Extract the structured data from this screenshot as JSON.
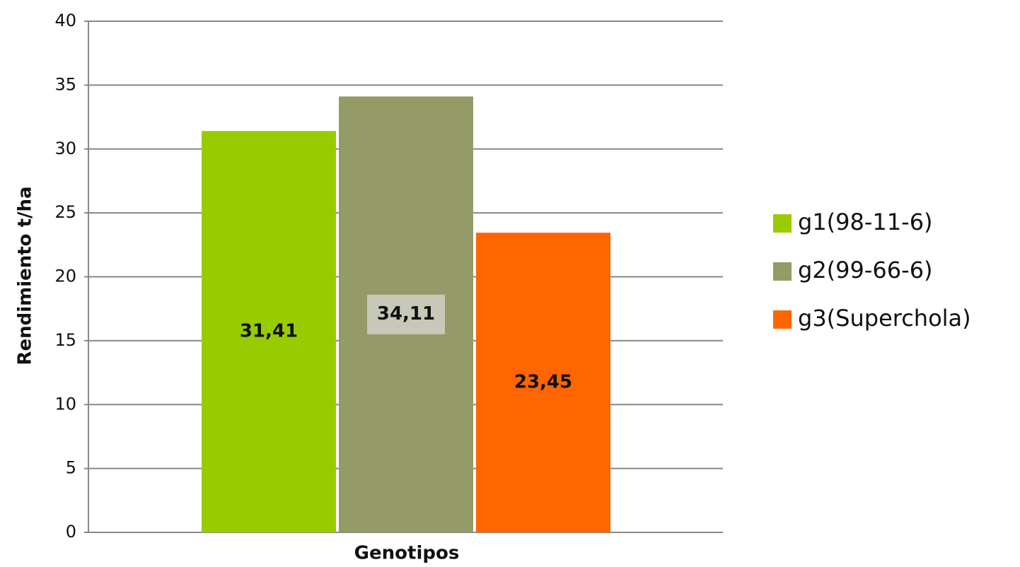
{
  "chart_data": {
    "type": "bar",
    "ylabel": "Rendimiento t/ha",
    "xlabel": "Genotipos",
    "series": [
      {
        "name": "g1(98-11-6)",
        "color": "#99cc00",
        "values": [
          31.41
        ],
        "value_labels": [
          "31,41"
        ]
      },
      {
        "name": "g2(99-66-6)",
        "color": "#949b67",
        "values": [
          34.11
        ],
        "value_labels": [
          "34,11"
        ]
      },
      {
        "name": "g3(Superchola)",
        "color": "#ff6600",
        "values": [
          23.45
        ],
        "value_labels": [
          "23,45"
        ]
      }
    ],
    "ylim": [
      0,
      40
    ],
    "yticks": [
      0,
      5,
      10,
      15,
      20,
      25,
      30,
      35,
      40
    ],
    "grid": true,
    "legend": "right"
  }
}
